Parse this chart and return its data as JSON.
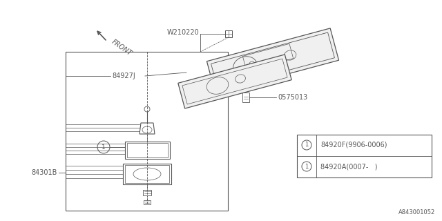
{
  "bg_color": "#ffffff",
  "line_color": "#555555",
  "text_color": "#555555",
  "diagram_id": "A843001052",
  "labels": {
    "front_arrow": "FRONT",
    "part_W210220": "W210220",
    "part_84927J": "84927J",
    "part_0575013": "0575013",
    "part_84301B": "84301B",
    "legend_line1": "84920F(9906-0006)",
    "legend_line2": "84920A(0007-   )"
  }
}
